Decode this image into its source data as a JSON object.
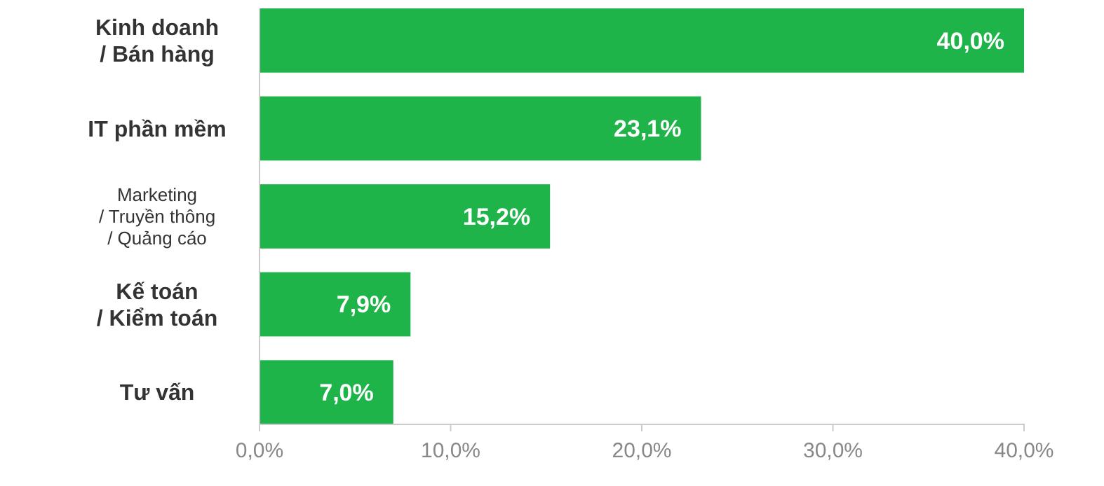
{
  "chart_data": {
    "type": "bar",
    "orientation": "horizontal",
    "categories": [
      "Kinh doanh / Bán hàng",
      "IT phần mềm",
      "Marketing / Truyền thông / Quảng cáo",
      "Kế toán / Kiểm toán",
      "Tư vấn"
    ],
    "values": [
      40.0,
      23.1,
      15.2,
      7.9,
      7.0
    ],
    "value_labels": [
      "40,0%",
      "23,1%",
      "15,2%",
      "7,9%",
      "7,0%"
    ],
    "color": "#1fb44a",
    "xlim": [
      0,
      40
    ],
    "xticks": [
      {
        "value": 0,
        "label": "0,0%"
      },
      {
        "value": 10,
        "label": "10,0%"
      },
      {
        "value": 20,
        "label": "20,0%"
      },
      {
        "value": 30,
        "label": "30,0%"
      },
      {
        "value": 40,
        "label": "40,0%"
      }
    ],
    "grid": false
  }
}
